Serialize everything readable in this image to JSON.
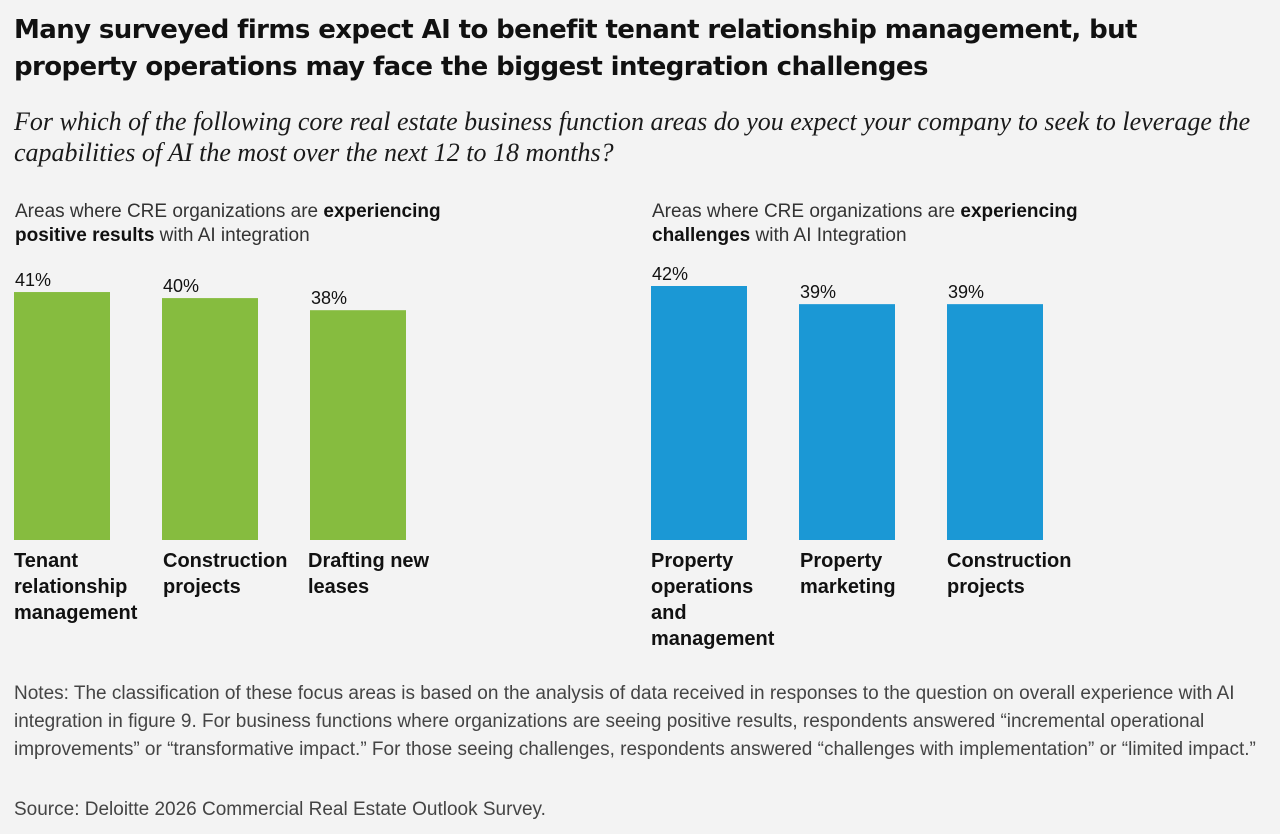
{
  "headline": "Many surveyed firms expect AI to benefit tenant relationship management, but property operations may face the biggest integration challenges",
  "question": "For which of the following core real estate business function areas do you expect your company to seek to leverage the capabilities of AI the most over the next 12 to 18 months?",
  "chart_data": [
    {
      "type": "bar",
      "title_parts": [
        "Areas where CRE organizations are ",
        "experiencing positive results",
        " with AI integration"
      ],
      "categories": [
        "Tenant relationship management",
        "Construction projects",
        "Drafting new leases"
      ],
      "values": [
        41,
        40,
        38
      ],
      "value_labels": [
        "41%",
        "40%",
        "38%"
      ],
      "ylim": [
        0,
        42
      ],
      "color": "#86bc3f"
    },
    {
      "type": "bar",
      "title_parts": [
        "Areas where CRE organizations are ",
        "experiencing challenges",
        " with AI Integration"
      ],
      "categories": [
        "Property operations and management",
        "Property marketing",
        "Construction projects"
      ],
      "values": [
        42,
        39,
        39
      ],
      "value_labels": [
        "42%",
        "39%",
        "39%"
      ],
      "ylim": [
        0,
        42
      ],
      "color": "#1b98d5"
    }
  ],
  "notes": "Notes: The classification of these focus areas is based on the analysis of data received in responses to the question on overall experience with AI integration in figure 9. For business functions where organizations are seeing positive results, respondents answered “incremental operational improvements” or “transformative impact.” For those seeing challenges, respondents answered “challenges with implementation” or “limited impact.”",
  "source": "Source: Deloitte 2026 Commercial Real Estate Outlook Survey."
}
